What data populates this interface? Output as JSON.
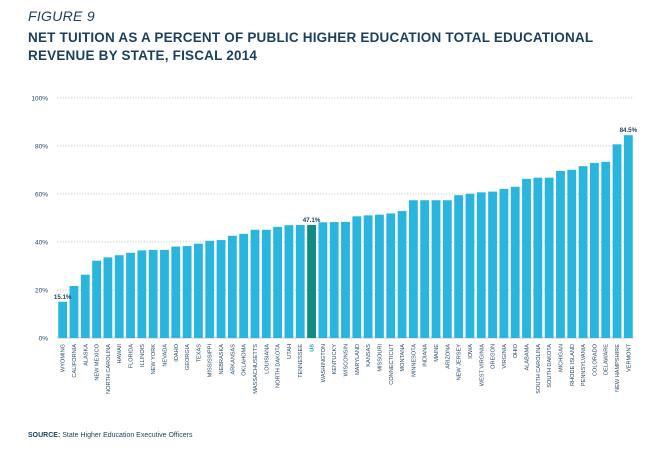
{
  "figure_label": "FIGURE 9",
  "title": "NET TUITION AS A PERCENT OF PUBLIC HIGHER EDUCATION TOTAL EDUCATIONAL REVENUE BY STATE, FISCAL 2014",
  "source_label": "SOURCE:",
  "source_text": "State Higher Education Executive Officers",
  "colors": {
    "bar": "#29b5dd",
    "highlight": "#0e8d80",
    "highlight_label": "#1aa89a",
    "text": "#1b3f5f",
    "grid": "#b9b9b9"
  },
  "chart_data": {
    "type": "bar",
    "title": "NET TUITION AS A PERCENT OF PUBLIC HIGHER EDUCATION TOTAL EDUCATIONAL REVENUE BY STATE, FISCAL 2014",
    "xlabel": "",
    "ylabel": "",
    "ylim": [
      0,
      100
    ],
    "yticks": [
      "0%",
      "20%",
      "40%",
      "60%",
      "80%",
      "100%"
    ],
    "grid": true,
    "highlight_category": "US",
    "categories": [
      "WYOMING",
      "CALIFORNIA",
      "ALASKA",
      "NEW MEXICO",
      "NORTH CAROLINA",
      "HAWAII",
      "FLORIDA",
      "ILLINOIS",
      "NEW YORK",
      "NEVADA",
      "IDAHO",
      "GEORGIA",
      "TEXAS",
      "MISSISSIPPI",
      "NEBRASKA",
      "ARKANSAS",
      "OKLAHOMA",
      "MASSACHUSETTS",
      "LOUISIANA",
      "NORTH DAKOTA",
      "UTAH",
      "TENNESSEE",
      "US",
      "WASHINGTON",
      "KENTUCKY",
      "WISCONSIN",
      "MARYLAND",
      "KANSAS",
      "MISSOURI",
      "CONNECTICUT",
      "MONTANA",
      "MINNESOTA",
      "INDIANA",
      "MAINE",
      "ARIZONA",
      "NEW JERSEY",
      "IOWA",
      "WEST VIRGINIA",
      "OREGON",
      "VIRGINIA",
      "OHIO",
      "ALABAMA",
      "SOUTH CAROLINA",
      "SOUTH DAKOTA",
      "MICHIGAN",
      "RHODE ISLAND",
      "PENNSYLVANIA",
      "COLORADO",
      "DELAWARE",
      "NEW HAMPSHIRE",
      "VERMONT"
    ],
    "values": [
      15.1,
      21.7,
      26.4,
      32.2,
      33.6,
      34.5,
      35.5,
      36.5,
      36.7,
      36.7,
      38.1,
      38.3,
      39.3,
      40.5,
      40.8,
      42.6,
      43.4,
      45.1,
      45.1,
      46.3,
      47.0,
      47.1,
      47.1,
      48.2,
      48.3,
      48.4,
      50.7,
      51.1,
      51.4,
      51.9,
      52.9,
      57.4,
      57.4,
      57.4,
      57.4,
      59.5,
      60.1,
      60.7,
      61.0,
      62.1,
      63.0,
      66.3,
      66.8,
      66.8,
      69.6,
      70.1,
      71.6,
      72.9,
      73.4,
      80.7,
      84.5
    ],
    "data_labels": [
      {
        "category": "WYOMING",
        "text": "15.1%"
      },
      {
        "category": "US",
        "text": "47.1%"
      },
      {
        "category": "VERMONT",
        "text": "84.5%"
      }
    ]
  }
}
